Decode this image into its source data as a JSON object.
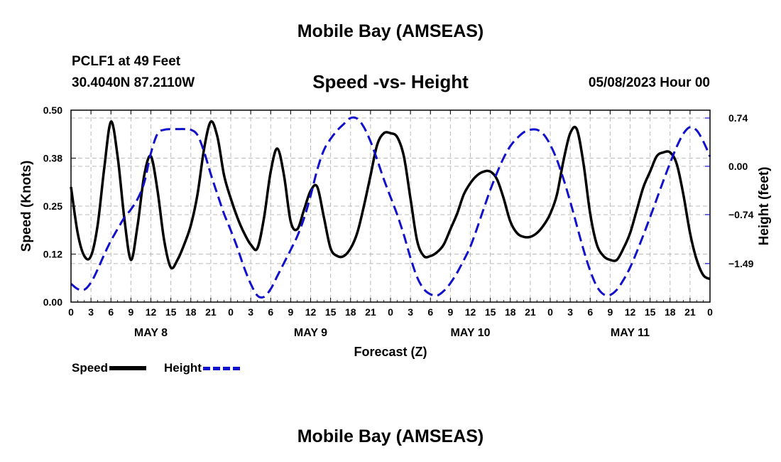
{
  "page": {
    "title": "Mobile Bay (AMSEAS)",
    "station": "PCLF1 at 49 Feet",
    "coordinates": "30.4040N  87.2110W",
    "subtitle": "Speed -vs- Height",
    "datetime": "05/08/2023 Hour 00",
    "bottom_title": "Mobile Bay (AMSEAS)"
  },
  "legend": {
    "speed_label": "Speed",
    "height_label": "Height"
  },
  "colors": {
    "speed": "#000000",
    "height": "#1010cc",
    "grid": "#bbbbbb"
  },
  "chart_data": {
    "type": "line",
    "title": "Speed -vs- Height",
    "xlabel": "Forecast (Z)",
    "ylabel": "Speed (Knots)",
    "y2label": "Height (feet)",
    "xlim": [
      0,
      96
    ],
    "ylim": [
      0,
      0.5
    ],
    "y2lim": [
      -2.08,
      0.86
    ],
    "x_tick_labels": [
      "0",
      "3",
      "6",
      "9",
      "12",
      "15",
      "18",
      "21",
      "0",
      "3",
      "6",
      "9",
      "12",
      "15",
      "18",
      "21",
      "0",
      "3",
      "6",
      "9",
      "12",
      "15",
      "18",
      "21",
      "0",
      "3",
      "6",
      "9",
      "12",
      "15",
      "18",
      "21",
      "0"
    ],
    "x_tick_hours": [
      0,
      3,
      6,
      9,
      12,
      15,
      18,
      21,
      24,
      27,
      30,
      33,
      36,
      39,
      42,
      45,
      48,
      51,
      54,
      57,
      60,
      63,
      66,
      69,
      72,
      75,
      78,
      81,
      84,
      87,
      90,
      93,
      96
    ],
    "day_labels": [
      {
        "label": "MAY 8",
        "hour": 12
      },
      {
        "label": "MAY 9",
        "hour": 36
      },
      {
        "label": "MAY 10",
        "hour": 60
      },
      {
        "label": "MAY 11",
        "hour": 84
      }
    ],
    "y_ticks": [
      {
        "value": 0.0,
        "label": "0.00"
      },
      {
        "value": 0.125,
        "label": "0.12"
      },
      {
        "value": 0.25,
        "label": "0.25"
      },
      {
        "value": 0.375,
        "label": "0.38"
      },
      {
        "value": 0.5,
        "label": "0.50"
      }
    ],
    "y2_ticks": [
      {
        "value": 0.74,
        "label": "0.74"
      },
      {
        "value": 0.0,
        "label": "0.00"
      },
      {
        "value": -0.74,
        "label": "−0.74"
      },
      {
        "value": -1.49,
        "label": "−1.49"
      }
    ],
    "series": [
      {
        "name": "Speed",
        "axis": "left",
        "style": "solid",
        "x": [
          0,
          1,
          2,
          3,
          4,
          5,
          6,
          7,
          8,
          9,
          10,
          11,
          12,
          13,
          14,
          15,
          16,
          17,
          18,
          19,
          20,
          21,
          22,
          23,
          24,
          25,
          26,
          27,
          28,
          29,
          30,
          31,
          32,
          33,
          34,
          35,
          36,
          37,
          38,
          39,
          40,
          41,
          42,
          43,
          44,
          45,
          46,
          47,
          48,
          49,
          50,
          51,
          52,
          53,
          54,
          55,
          56,
          57,
          58,
          59,
          60,
          61,
          62,
          63,
          64,
          65,
          66,
          67,
          68,
          69,
          70,
          71,
          72,
          73,
          74,
          75,
          76,
          77,
          78,
          79,
          80,
          81,
          82,
          83,
          84,
          85,
          86,
          87,
          88,
          89,
          90,
          91,
          92,
          93,
          94,
          95,
          96
        ],
        "y": [
          0.3,
          0.18,
          0.12,
          0.12,
          0.2,
          0.35,
          0.47,
          0.38,
          0.22,
          0.11,
          0.2,
          0.33,
          0.38,
          0.29,
          0.16,
          0.09,
          0.11,
          0.15,
          0.2,
          0.28,
          0.4,
          0.47,
          0.43,
          0.33,
          0.27,
          0.22,
          0.18,
          0.15,
          0.14,
          0.22,
          0.34,
          0.4,
          0.33,
          0.21,
          0.19,
          0.24,
          0.29,
          0.3,
          0.22,
          0.14,
          0.12,
          0.12,
          0.14,
          0.18,
          0.25,
          0.33,
          0.41,
          0.44,
          0.44,
          0.43,
          0.38,
          0.27,
          0.16,
          0.12,
          0.12,
          0.13,
          0.15,
          0.19,
          0.23,
          0.28,
          0.31,
          0.33,
          0.34,
          0.34,
          0.32,
          0.27,
          0.21,
          0.18,
          0.17,
          0.17,
          0.18,
          0.2,
          0.23,
          0.28,
          0.37,
          0.44,
          0.45,
          0.36,
          0.23,
          0.15,
          0.12,
          0.11,
          0.11,
          0.14,
          0.18,
          0.24,
          0.3,
          0.34,
          0.38,
          0.39,
          0.39,
          0.36,
          0.28,
          0.18,
          0.11,
          0.07,
          0.06
        ]
      },
      {
        "name": "Height",
        "axis": "right",
        "style": "dashed",
        "x": [
          0,
          1,
          2,
          3,
          4,
          5,
          6,
          7,
          8,
          9,
          10,
          11,
          12,
          13,
          14,
          15,
          16,
          17,
          18,
          19,
          20,
          21,
          22,
          23,
          24,
          25,
          26,
          27,
          28,
          29,
          30,
          31,
          32,
          33,
          34,
          35,
          36,
          37,
          38,
          39,
          40,
          41,
          42,
          43,
          44,
          45,
          46,
          47,
          48,
          49,
          50,
          51,
          52,
          53,
          54,
          55,
          56,
          57,
          58,
          59,
          60,
          61,
          62,
          63,
          64,
          65,
          66,
          67,
          68,
          69,
          70,
          71,
          72,
          73,
          74,
          75,
          76,
          77,
          78,
          79,
          80,
          81,
          82,
          83,
          84,
          85,
          86,
          87,
          88,
          89,
          90,
          91,
          92,
          93,
          94,
          95,
          96
        ],
        "y": [
          -1.8,
          -1.88,
          -1.89,
          -1.78,
          -1.58,
          -1.35,
          -1.14,
          -0.96,
          -0.79,
          -0.66,
          -0.5,
          -0.25,
          0.2,
          0.5,
          0.56,
          0.57,
          0.57,
          0.57,
          0.56,
          0.48,
          0.22,
          -0.12,
          -0.43,
          -0.73,
          -0.98,
          -1.25,
          -1.55,
          -1.8,
          -1.98,
          -2.0,
          -1.88,
          -1.68,
          -1.48,
          -1.28,
          -1.07,
          -0.8,
          -0.45,
          -0.05,
          0.25,
          0.42,
          0.55,
          0.65,
          0.74,
          0.73,
          0.6,
          0.38,
          0.1,
          -0.2,
          -0.47,
          -0.74,
          -1.05,
          -1.4,
          -1.7,
          -1.88,
          -1.96,
          -1.98,
          -1.91,
          -1.79,
          -1.63,
          -1.44,
          -1.23,
          -0.95,
          -0.65,
          -0.36,
          -0.1,
          0.13,
          0.31,
          0.43,
          0.52,
          0.56,
          0.56,
          0.49,
          0.33,
          0.1,
          -0.2,
          -0.54,
          -0.91,
          -1.28,
          -1.6,
          -1.84,
          -1.96,
          -1.97,
          -1.89,
          -1.74,
          -1.55,
          -1.31,
          -1.05,
          -0.78,
          -0.5,
          -0.22,
          0.05,
          0.3,
          0.5,
          0.6,
          0.55,
          0.38,
          0.15
        ]
      }
    ]
  }
}
